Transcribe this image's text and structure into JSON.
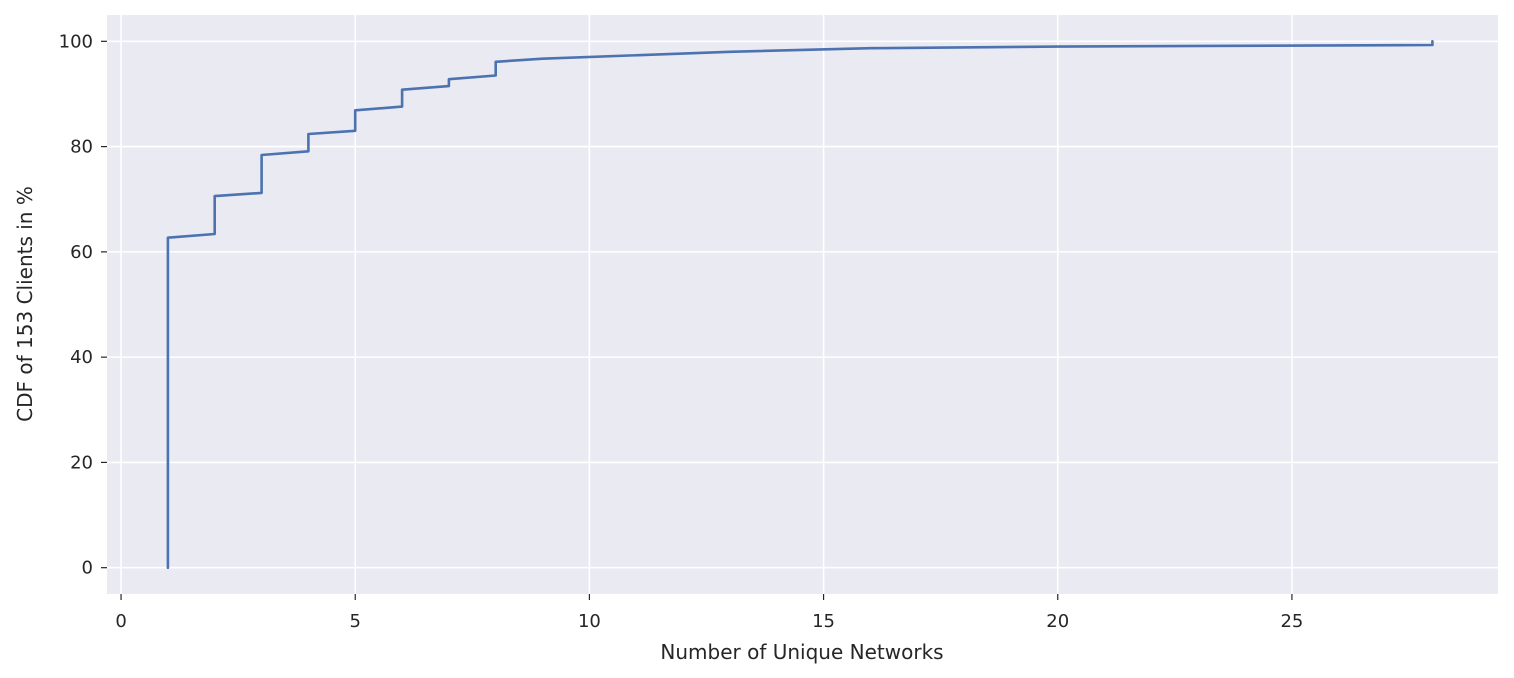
{
  "chart_data": {
    "type": "line",
    "title": "",
    "xlabel": "Number of Unique Networks",
    "ylabel": "CDF of 153 Clients in %",
    "xlim": [
      -0.3,
      29.4
    ],
    "ylim": [
      -5,
      105
    ],
    "xticks": [
      0,
      5,
      10,
      15,
      20,
      25
    ],
    "yticks": [
      0,
      20,
      40,
      60,
      80,
      100
    ],
    "xtick_labels": [
      "0",
      "5",
      "10",
      "15",
      "20",
      "25"
    ],
    "ytick_labels": [
      "0",
      "20",
      "40",
      "60",
      "80",
      "100"
    ],
    "grid": true,
    "background": "#eaeaf2",
    "series": [
      {
        "color": "#4c72b0",
        "x": [
          1,
          1,
          2,
          2,
          3,
          3,
          4,
          4,
          5,
          5,
          6,
          6,
          7,
          7,
          8,
          8,
          9,
          13,
          16,
          20,
          28,
          28
        ],
        "y": [
          0,
          62.7,
          63.4,
          70.6,
          71.2,
          78.4,
          79.1,
          82.4,
          83.0,
          86.9,
          87.6,
          90.8,
          91.5,
          92.8,
          93.5,
          96.1,
          96.7,
          98.0,
          98.7,
          99.0,
          99.3,
          100
        ]
      }
    ]
  }
}
